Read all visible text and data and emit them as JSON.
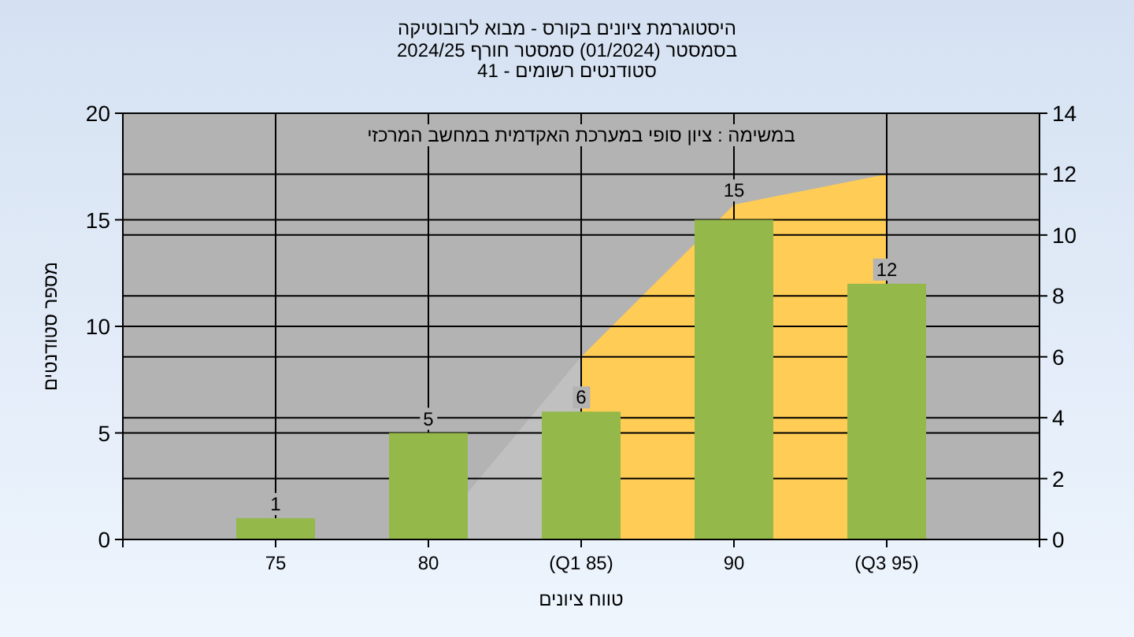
{
  "chart_data": {
    "type": "bar",
    "title": "היסטוגרמת ציונים בקורס - מבוא לרובוטיקה",
    "subtitle": "בסמסטר  (01/2024)  סמסטר חורף 2024/25\nסטודנטים רשומים - 41",
    "annotations": [
      "במשימה : ציון סופי במערכת האקדמית במחשב המרכזי"
    ],
    "xlabel": "טווח ציונים",
    "ylabel": "מספר סטודנטים",
    "categories": [
      "75",
      "80",
      "(Q1 85)",
      "90",
      "(Q3 95)"
    ],
    "series": [
      {
        "type": "area",
        "axis": "y2",
        "color": "#c0c0c0",
        "values": [
          null,
          0,
          6,
          null,
          null
        ]
      },
      {
        "type": "area",
        "axis": "y2",
        "color": "#ffcc55",
        "values": [
          null,
          null,
          6,
          11,
          12
        ]
      },
      {
        "type": "bar",
        "color": "#94b84a",
        "values": [
          1,
          5,
          6,
          15,
          12
        ],
        "value_labels": [
          "1",
          "5",
          "6",
          "15",
          "12"
        ]
      }
    ],
    "ylim": [
      0,
      20
    ],
    "yticks": [
      0,
      5,
      10,
      15,
      20
    ],
    "y2lim": [
      0,
      14
    ],
    "y2ticks": [
      0,
      2,
      4,
      6,
      8,
      10,
      12,
      14
    ],
    "grid": true
  }
}
